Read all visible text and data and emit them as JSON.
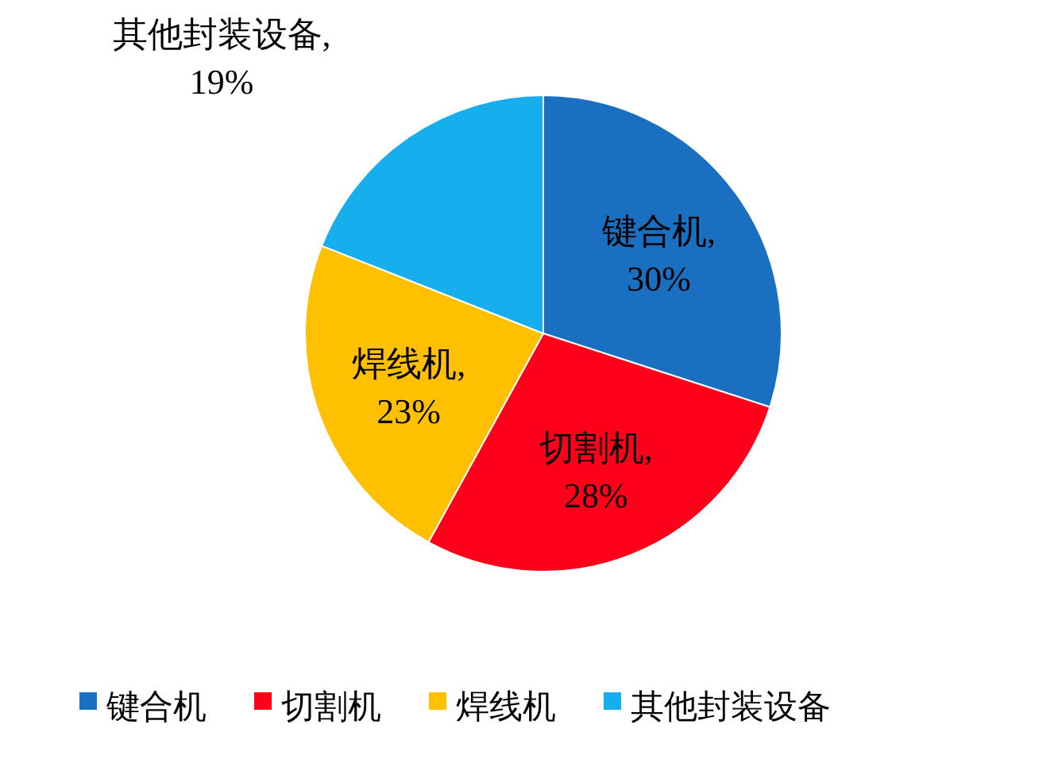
{
  "chart_data": {
    "type": "pie",
    "categories": [
      "键合机",
      "切割机",
      "焊线机",
      "其他封装设备"
    ],
    "values": [
      30,
      28,
      23,
      19
    ],
    "value_labels": [
      "键合机,\n30%",
      "切割机,\n28%",
      "焊线机,\n23%",
      "其他封装设备,\n19%"
    ],
    "colors": [
      "#1a6fc1",
      "#fe0019",
      "#ffc000",
      "#16aeec"
    ],
    "legend": "bottom"
  }
}
